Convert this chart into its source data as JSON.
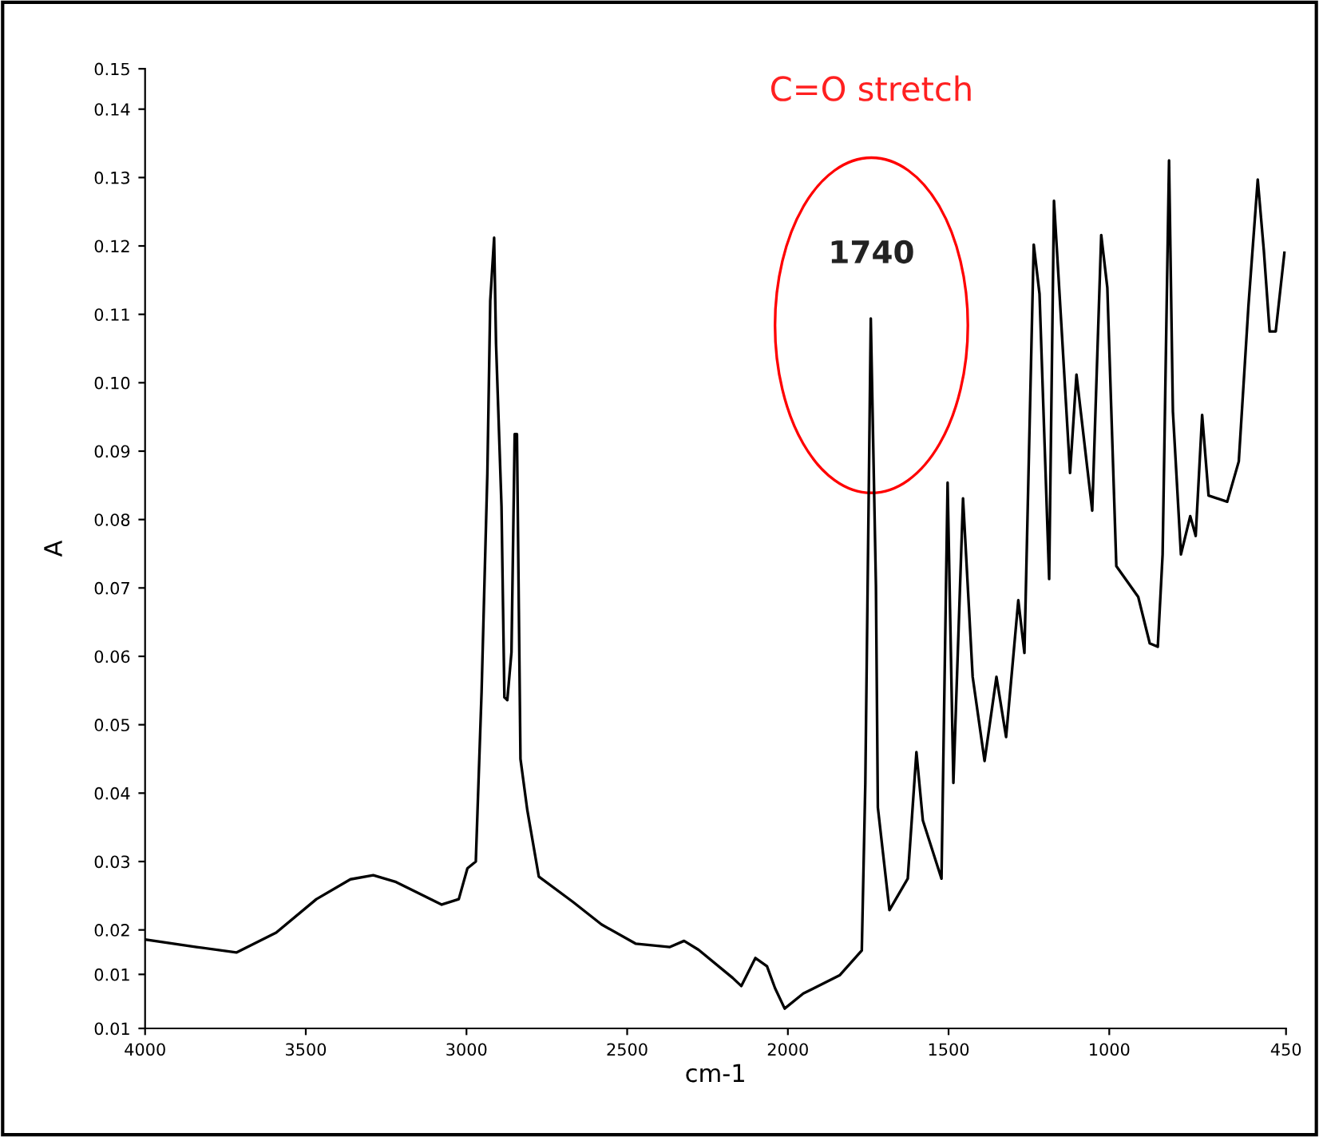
{
  "chart_data": {
    "type": "line",
    "xlabel": "cm-1",
    "ylabel": "A",
    "xlim": [
      4000,
      450
    ],
    "xticks": [
      4000,
      3500,
      3000,
      2500,
      2000,
      1500,
      1000,
      450
    ],
    "ylim": [
      0.0056,
      0.1459
    ],
    "yticks": [
      {
        "value": 0.0056,
        "label": "0.01"
      },
      {
        "value": 0.0135,
        "label": "0.01"
      },
      0.02,
      0.03,
      0.04,
      0.05,
      0.06,
      0.07,
      0.08,
      0.09,
      {
        "value": 0.1,
        "label": "0.10"
      },
      0.11,
      0.12,
      0.13,
      0.14,
      {
        "value": 0.1459,
        "label": "0.15"
      }
    ],
    "grid": false,
    "legend": false,
    "marker": "none",
    "line_style": "solid",
    "annotations": [
      {
        "text": "1740",
        "x": 1740,
        "y": 0.1094
      },
      "C=O stretch"
    ],
    "series": [
      {
        "color": "#000000",
        "x": [
          4000,
          3840,
          3716,
          3592,
          3467,
          3361,
          3290,
          3219,
          3077,
          3024,
          2997,
          2971,
          2953,
          2935,
          2926,
          2914,
          2908,
          2891,
          2882,
          2873,
          2860,
          2850,
          2843,
          2832,
          2811,
          2775,
          2669,
          2580,
          2474,
          2367,
          2323,
          2278,
          2172,
          2145,
          2101,
          2065,
          2040,
          2010,
          1952,
          1838,
          1770,
          1759,
          1742,
          1726,
          1720,
          1684,
          1627,
          1600,
          1580,
          1522,
          1503,
          1485,
          1455,
          1425,
          1388,
          1351,
          1321,
          1283,
          1264,
          1235,
          1217,
          1187,
          1172,
          1149,
          1122,
          1102,
          1053,
          1025,
          1006,
          978,
          910,
          874,
          849,
          834,
          814,
          802,
          777,
          748,
          731,
          711,
          691,
          633,
          597,
          567,
          538,
          519,
          501,
          482,
          455
        ],
        "values": [
          0.0186,
          0.0175,
          0.0167,
          0.0196,
          0.0245,
          0.0274,
          0.028,
          0.027,
          0.0237,
          0.0245,
          0.029,
          0.03,
          0.0548,
          0.0868,
          0.112,
          0.1212,
          0.1057,
          0.0819,
          0.054,
          0.0536,
          0.0606,
          0.0925,
          0.0925,
          0.045,
          0.0376,
          0.0278,
          0.0241,
          0.0208,
          0.018,
          0.0175,
          0.0184,
          0.0171,
          0.013,
          0.0118,
          0.0159,
          0.0147,
          0.0115,
          0.0085,
          0.0107,
          0.0134,
          0.017,
          0.0415,
          0.1094,
          0.0704,
          0.0379,
          0.0229,
          0.0275,
          0.046,
          0.036,
          0.0275,
          0.0854,
          0.0415,
          0.0831,
          0.057,
          0.0447,
          0.057,
          0.0482,
          0.0682,
          0.0605,
          0.1202,
          0.113,
          0.0713,
          0.1266,
          0.1085,
          0.0868,
          0.1012,
          0.0813,
          0.1216,
          0.1139,
          0.0732,
          0.0687,
          0.0619,
          0.0614,
          0.0749,
          0.1325,
          0.0958,
          0.0749,
          0.0805,
          0.0776,
          0.0953,
          0.0835,
          0.0826,
          0.0885,
          0.1112,
          0.1297,
          0.1193,
          0.1075,
          0.1075,
          0.119
        ]
      }
    ]
  }
}
